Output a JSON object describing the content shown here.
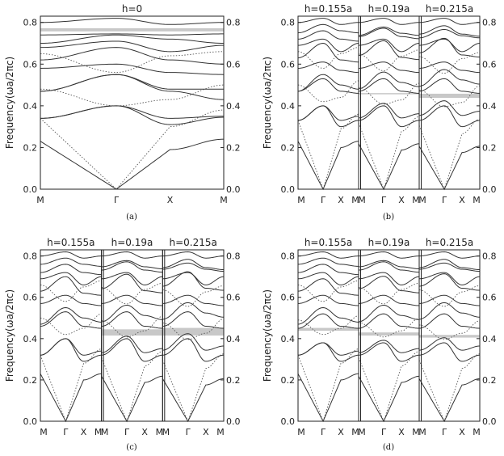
{
  "chart_data": [
    {
      "type": "line",
      "panel": "(a)",
      "subplot_titles": [
        "h=0"
      ],
      "ylabel": "Frequency(ωa/2πc)",
      "xticks": [
        "M",
        "Γ",
        "X",
        "M"
      ],
      "ylim": [
        0,
        0.83
      ],
      "yticks": [
        "0.0",
        "0.2",
        "0.4",
        "0.6",
        "0.8"
      ],
      "band_gaps": [
        [
          0.757,
          0.772
        ]
      ],
      "series": [
        {
          "style": "solid",
          "values": [
            0.23,
            0.0,
            0.19,
            0.24
          ]
        },
        {
          "style": "solid",
          "values": [
            0.34,
            0.4,
            0.31,
            0.345
          ]
        },
        {
          "style": "solid",
          "values": [
            0.34,
            0.4,
            0.34,
            0.35
          ]
        },
        {
          "style": "dotted",
          "values": [
            0.34,
            0.0,
            0.3,
            0.38
          ]
        },
        {
          "style": "solid",
          "values": [
            0.47,
            0.55,
            0.47,
            0.43
          ]
        },
        {
          "style": "solid",
          "values": [
            0.47,
            0.55,
            0.48,
            0.48
          ]
        },
        {
          "style": "dotted",
          "values": [
            0.48,
            0.4,
            0.43,
            0.5
          ]
        },
        {
          "style": "solid",
          "values": [
            0.58,
            0.6,
            0.56,
            0.55
          ]
        },
        {
          "style": "solid",
          "values": [
            0.62,
            0.68,
            0.62,
            0.6
          ]
        },
        {
          "style": "dotted",
          "values": [
            0.65,
            0.56,
            0.64,
            0.66
          ]
        },
        {
          "style": "solid",
          "values": [
            0.68,
            0.71,
            0.66,
            0.69
          ]
        },
        {
          "style": "solid",
          "values": [
            0.7,
            0.74,
            0.72,
            0.7
          ]
        },
        {
          "style": "solid",
          "values": [
            0.74,
            0.745,
            0.74,
            0.745
          ]
        },
        {
          "style": "solid",
          "values": [
            0.8,
            0.82,
            0.79,
            0.8
          ]
        }
      ]
    },
    {
      "type": "line",
      "panel": "(b)",
      "subplot_titles": [
        "h=0.155a",
        "h=0.19a",
        "h=0.215a"
      ],
      "ylabel": "Frequency(ωa/2πc)",
      "xticks": [
        "M",
        "Γ",
        "X",
        "M"
      ],
      "ylim": [
        0,
        0.83
      ],
      "yticks": [
        "0.0",
        "0.2",
        "0.4",
        "0.6",
        "0.8"
      ],
      "band_gaps": [
        null,
        [
          0.458,
          0.461
        ],
        [
          0.438,
          0.458
        ]
      ],
      "series": [
        {
          "style": "solid",
          "values": [
            0.23,
            0.0,
            0.2,
            0.23
          ]
        },
        {
          "style": "solid",
          "values": [
            0.33,
            0.4,
            0.3,
            0.33
          ]
        },
        {
          "style": "solid",
          "values": [
            0.33,
            0.4,
            0.33,
            0.35
          ]
        },
        {
          "style": "dotted",
          "values": [
            0.33,
            0.0,
            0.29,
            0.36
          ]
        },
        {
          "style": "solid",
          "values": [
            0.47,
            0.53,
            0.47,
            0.46
          ]
        },
        {
          "style": "solid",
          "values": [
            0.47,
            0.55,
            0.5,
            0.48
          ]
        },
        {
          "style": "dotted",
          "values": [
            0.5,
            0.42,
            0.44,
            0.52
          ]
        },
        {
          "style": "solid",
          "values": [
            0.58,
            0.61,
            0.57,
            0.56
          ]
        },
        {
          "style": "solid",
          "values": [
            0.63,
            0.7,
            0.62,
            0.61
          ]
        },
        {
          "style": "dotted",
          "values": [
            0.66,
            0.58,
            0.65,
            0.68
          ]
        },
        {
          "style": "solid",
          "values": [
            0.69,
            0.72,
            0.66,
            0.7
          ]
        },
        {
          "style": "solid",
          "values": [
            0.72,
            0.76,
            0.72,
            0.71
          ]
        },
        {
          "style": "solid",
          "values": [
            0.75,
            0.79,
            0.76,
            0.75
          ]
        },
        {
          "style": "solid",
          "values": [
            0.8,
            0.82,
            0.79,
            0.8
          ]
        }
      ]
    },
    {
      "type": "line",
      "panel": "(c)",
      "subplot_titles": [
        "h=0.155a",
        "h=0.19a",
        "h=0.215a"
      ],
      "ylabel": "Frequency(ωa/2πc)",
      "xticks": [
        "M",
        "Γ",
        "X",
        "M"
      ],
      "ylim": [
        0,
        0.83
      ],
      "yticks": [
        "0.0",
        "0.2",
        "0.4",
        "0.6",
        "0.8"
      ],
      "band_gaps": [
        null,
        [
          0.415,
          0.445
        ],
        [
          0.415,
          0.452
        ]
      ],
      "series": [
        {
          "style": "solid",
          "values": [
            0.23,
            0.0,
            0.2,
            0.23
          ]
        },
        {
          "style": "solid",
          "values": [
            0.32,
            0.4,
            0.29,
            0.32
          ]
        },
        {
          "style": "solid",
          "values": [
            0.32,
            0.4,
            0.32,
            0.34
          ]
        },
        {
          "style": "dotted",
          "values": [
            0.32,
            0.0,
            0.28,
            0.35
          ]
        },
        {
          "style": "solid",
          "values": [
            0.46,
            0.53,
            0.46,
            0.45
          ]
        },
        {
          "style": "solid",
          "values": [
            0.47,
            0.55,
            0.5,
            0.48
          ]
        },
        {
          "style": "dotted",
          "values": [
            0.5,
            0.42,
            0.45,
            0.52
          ]
        },
        {
          "style": "solid",
          "values": [
            0.57,
            0.61,
            0.57,
            0.56
          ]
        },
        {
          "style": "solid",
          "values": [
            0.63,
            0.7,
            0.62,
            0.61
          ]
        },
        {
          "style": "dotted",
          "values": [
            0.66,
            0.58,
            0.65,
            0.68
          ]
        },
        {
          "style": "solid",
          "values": [
            0.69,
            0.72,
            0.66,
            0.7
          ]
        },
        {
          "style": "solid",
          "values": [
            0.72,
            0.76,
            0.72,
            0.71
          ]
        },
        {
          "style": "solid",
          "values": [
            0.76,
            0.79,
            0.76,
            0.75
          ]
        },
        {
          "style": "solid",
          "values": [
            0.8,
            0.82,
            0.79,
            0.8
          ]
        }
      ]
    },
    {
      "type": "line",
      "panel": "(d)",
      "subplot_titles": [
        "h=0.155a",
        "h=0.19a",
        "h=0.215a"
      ],
      "ylabel": "Frequency(ωa/2πc)",
      "xticks": [
        "M",
        "Γ",
        "X",
        "M"
      ],
      "ylim": [
        0,
        0.83
      ],
      "yticks": [
        "0.0",
        "0.2",
        "0.4",
        "0.6",
        "0.8"
      ],
      "band_gaps": [
        [
          0.438,
          0.452
        ],
        [
          0.415,
          0.43
        ],
        [
          0.405,
          0.418
        ]
      ],
      "series": [
        {
          "style": "solid",
          "values": [
            0.23,
            0.0,
            0.2,
            0.23
          ]
        },
        {
          "style": "solid",
          "values": [
            0.32,
            0.38,
            0.29,
            0.32
          ]
        },
        {
          "style": "solid",
          "values": [
            0.32,
            0.38,
            0.32,
            0.34
          ]
        },
        {
          "style": "dotted",
          "values": [
            0.32,
            0.0,
            0.28,
            0.35
          ]
        },
        {
          "style": "solid",
          "values": [
            0.45,
            0.52,
            0.46,
            0.45
          ]
        },
        {
          "style": "solid",
          "values": [
            0.47,
            0.55,
            0.5,
            0.48
          ]
        },
        {
          "style": "dotted",
          "values": [
            0.49,
            0.42,
            0.45,
            0.51
          ]
        },
        {
          "style": "solid",
          "values": [
            0.57,
            0.61,
            0.57,
            0.56
          ]
        },
        {
          "style": "solid",
          "values": [
            0.63,
            0.69,
            0.62,
            0.61
          ]
        },
        {
          "style": "dotted",
          "values": [
            0.66,
            0.58,
            0.65,
            0.68
          ]
        },
        {
          "style": "solid",
          "values": [
            0.69,
            0.72,
            0.66,
            0.7
          ]
        },
        {
          "style": "solid",
          "values": [
            0.72,
            0.76,
            0.72,
            0.71
          ]
        },
        {
          "style": "solid",
          "values": [
            0.76,
            0.79,
            0.76,
            0.75
          ]
        },
        {
          "style": "solid",
          "values": [
            0.8,
            0.82,
            0.79,
            0.8
          ]
        }
      ]
    }
  ]
}
